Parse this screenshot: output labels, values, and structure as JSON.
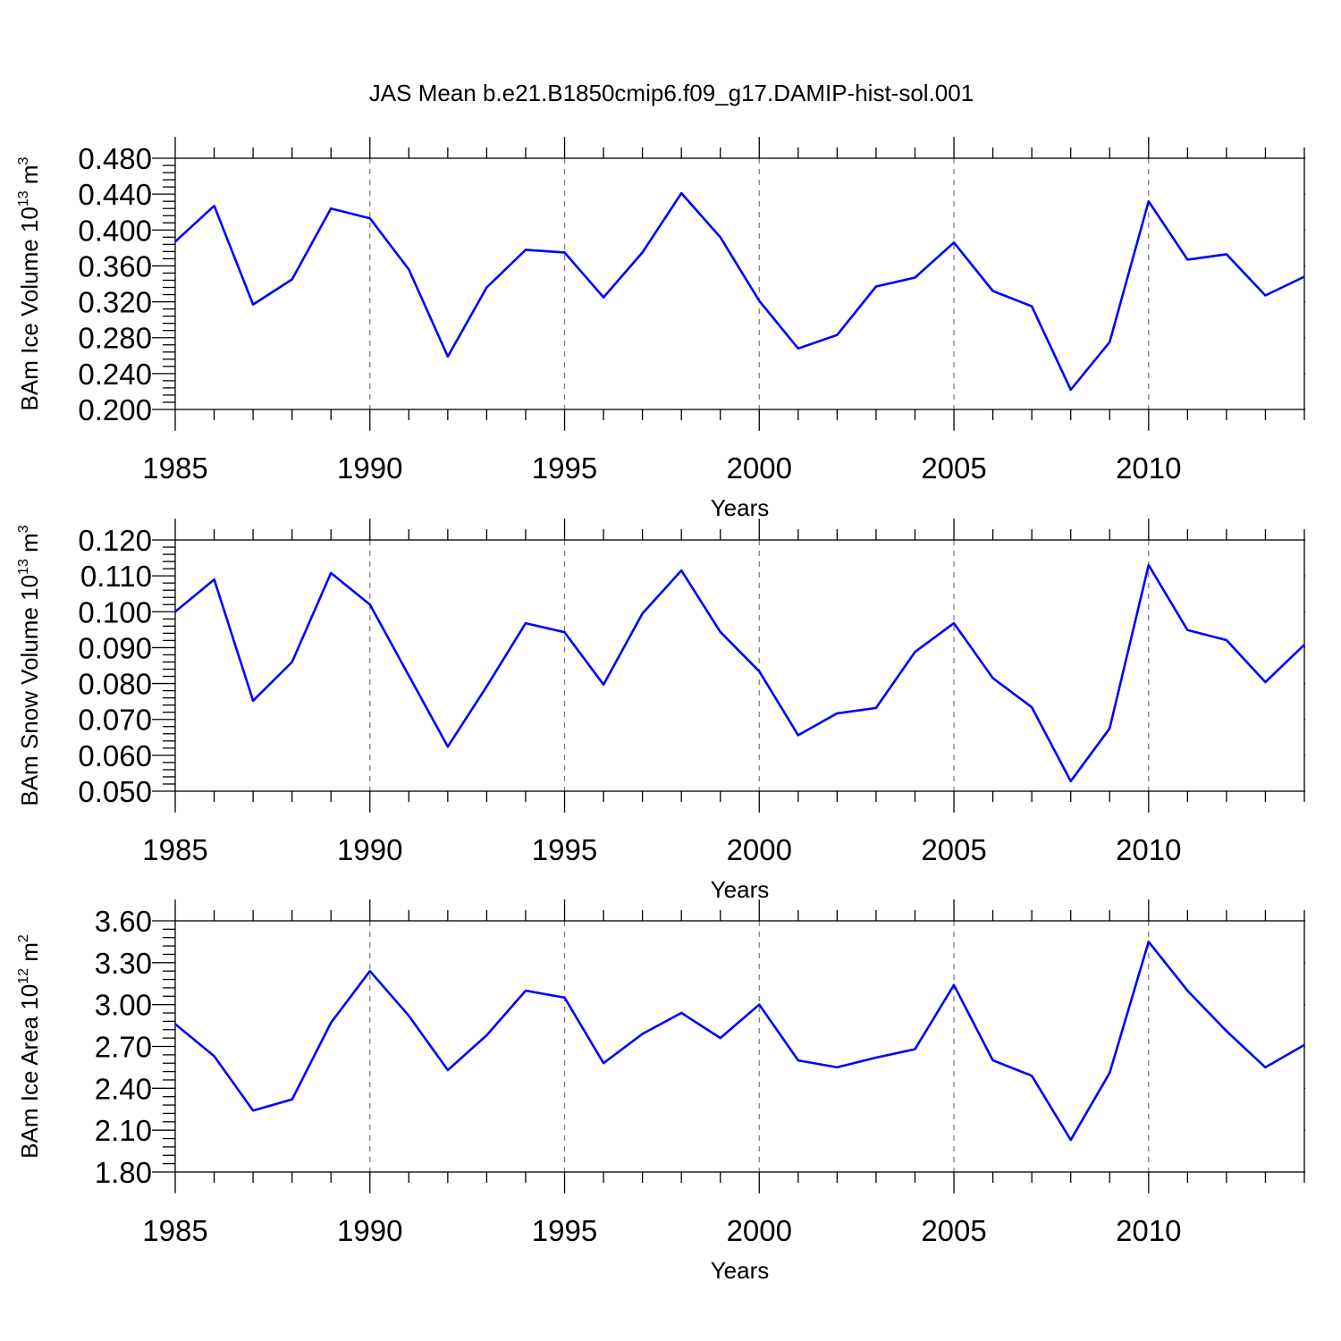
{
  "title": "JAS Mean b.e21.B1850cmip6.f09_g17.DAMIP-hist-sol.001",
  "colors": {
    "series": "#0000ff",
    "axis": "#000000",
    "grid": "#777777"
  },
  "chart_data": [
    {
      "type": "line",
      "ylabel": {
        "main": "BAm Ice Volume 10",
        "exp": "13",
        "unit": " m",
        "unit_exp": "3"
      },
      "xlabel": "Years",
      "xlim": [
        1985,
        2014
      ],
      "xticks": [
        "1985",
        "1990",
        "1995",
        "2000",
        "2005",
        "2010"
      ],
      "ylim": [
        0.2,
        0.48
      ],
      "yticks": [
        "0.200",
        "0.240",
        "0.280",
        "0.320",
        "0.360",
        "0.400",
        "0.440",
        "0.480"
      ],
      "grid": "vertical dashed at major x ticks",
      "x": [
        1985,
        1986,
        1987,
        1988,
        1989,
        1990,
        1991,
        1992,
        1993,
        1994,
        1995,
        1996,
        1997,
        1998,
        1999,
        2000,
        2001,
        2002,
        2003,
        2004,
        2005,
        2006,
        2007,
        2008,
        2009,
        2010,
        2011,
        2012,
        2013,
        2014
      ],
      "values": [
        0.387,
        0.427,
        0.317,
        0.345,
        0.424,
        0.413,
        0.356,
        0.259,
        0.336,
        0.378,
        0.375,
        0.325,
        0.375,
        0.441,
        0.392,
        0.321,
        0.268,
        0.283,
        0.337,
        0.347,
        0.386,
        0.332,
        0.315,
        0.222,
        0.275,
        0.432,
        0.367,
        0.373,
        0.327,
        0.348
      ]
    },
    {
      "type": "line",
      "ylabel": {
        "main": "BAm Snow Volume 10",
        "exp": "13",
        "unit": " m",
        "unit_exp": "3"
      },
      "xlabel": "Years",
      "xlim": [
        1985,
        2014
      ],
      "xticks": [
        "1985",
        "1990",
        "1995",
        "2000",
        "2005",
        "2010"
      ],
      "ylim": [
        0.05,
        0.12
      ],
      "yticks": [
        "0.050",
        "0.060",
        "0.070",
        "0.080",
        "0.090",
        "0.100",
        "0.110",
        "0.120"
      ],
      "grid": "vertical dashed at major x ticks",
      "x": [
        1985,
        1986,
        1987,
        1988,
        1989,
        1990,
        1991,
        1992,
        1993,
        1994,
        1995,
        1996,
        1997,
        1998,
        1999,
        2000,
        2001,
        2002,
        2003,
        2004,
        2005,
        2006,
        2007,
        2008,
        2009,
        2010,
        2011,
        2012,
        2013,
        2014
      ],
      "values": [
        0.1,
        0.109,
        0.0752,
        0.086,
        0.1108,
        0.102,
        0.0822,
        0.0624,
        0.0792,
        0.0968,
        0.0943,
        0.0797,
        0.0995,
        0.1115,
        0.0944,
        0.0834,
        0.0656,
        0.0717,
        0.0732,
        0.0888,
        0.0968,
        0.0815,
        0.0734,
        0.0528,
        0.0675,
        0.113,
        0.0949,
        0.0921,
        0.0804,
        0.0908
      ]
    },
    {
      "type": "line",
      "ylabel": {
        "main": "BAm Ice Area 10",
        "exp": "12",
        "unit": " m",
        "unit_exp": "2"
      },
      "xlabel": "Years",
      "xlim": [
        1985,
        2014
      ],
      "xticks": [
        "1985",
        "1990",
        "1995",
        "2000",
        "2005",
        "2010"
      ],
      "ylim": [
        1.8,
        3.6
      ],
      "yticks": [
        "1.80",
        "2.10",
        "2.40",
        "2.70",
        "3.00",
        "3.30",
        "3.60"
      ],
      "grid": "vertical dashed at major x ticks",
      "x": [
        1985,
        1986,
        1987,
        1988,
        1989,
        1990,
        1991,
        1992,
        1993,
        1994,
        1995,
        1996,
        1997,
        1998,
        1999,
        2000,
        2001,
        2002,
        2003,
        2004,
        2005,
        2006,
        2007,
        2008,
        2009,
        2010,
        2011,
        2012,
        2013,
        2014
      ],
      "values": [
        2.86,
        2.63,
        2.24,
        2.32,
        2.87,
        3.24,
        2.92,
        2.53,
        2.78,
        3.1,
        3.05,
        2.58,
        2.79,
        2.94,
        2.76,
        3.0,
        2.6,
        2.55,
        2.62,
        2.68,
        3.14,
        2.6,
        2.49,
        2.03,
        2.51,
        3.45,
        3.1,
        2.81,
        2.55,
        2.71
      ]
    }
  ]
}
